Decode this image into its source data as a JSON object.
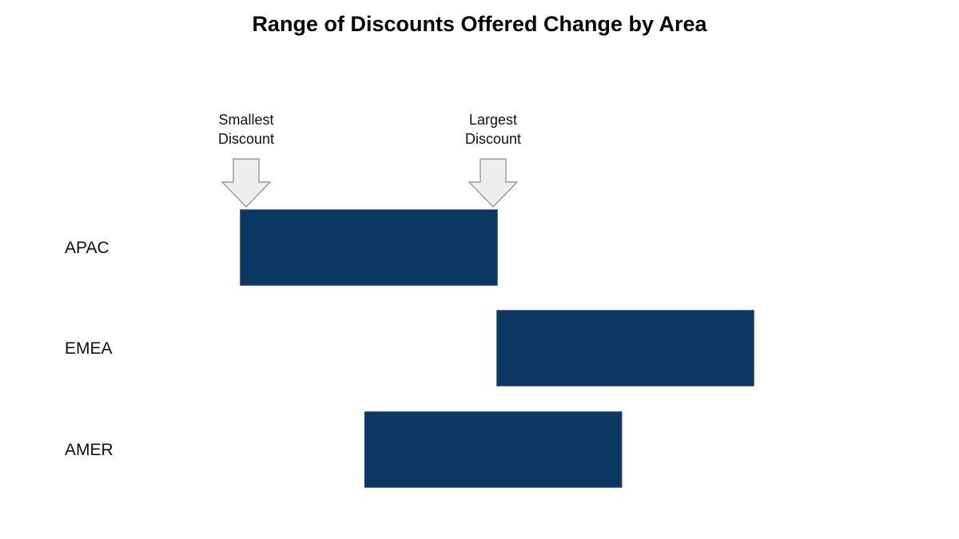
{
  "chart_data": {
    "type": "bar",
    "title": "Range of Discounts Offered Change by Area",
    "categories": [
      "APAC",
      "EMEA",
      "AMER"
    ],
    "ranges": [
      {
        "category": "APAC",
        "start": 0,
        "end": 1
      },
      {
        "category": "EMEA",
        "start": 1,
        "end": 2
      },
      {
        "category": "AMER",
        "start": 0.485,
        "end": 1.485
      }
    ],
    "xlim": [
      0,
      2
    ],
    "grid": false,
    "annotations": [
      {
        "id": "smallest",
        "lines": [
          "Smallest",
          "Discount"
        ],
        "at": 0
      },
      {
        "id": "largest",
        "lines": [
          "Largest",
          "Discount"
        ],
        "at": 1
      }
    ],
    "colors": {
      "bar_fill": "#0b3763",
      "bar_stroke": "#1d3d5e",
      "arrow_fill": "#eeeeee",
      "arrow_stroke": "#8a8a8a"
    }
  }
}
